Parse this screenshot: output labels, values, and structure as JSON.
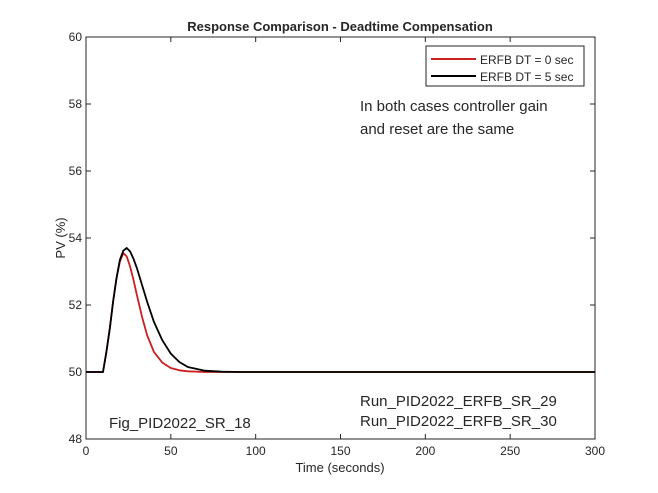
{
  "chart_data": {
    "type": "line",
    "title": "Response Comparison - Deadtime Compensation",
    "xlabel": "Time (seconds)",
    "ylabel": "PV (%)",
    "xlim": [
      0,
      300
    ],
    "ylim": [
      48,
      60
    ],
    "xticks": [
      0,
      50,
      100,
      150,
      200,
      250,
      300
    ],
    "yticks": [
      48,
      50,
      52,
      54,
      56,
      58,
      60
    ],
    "grid": false,
    "legend_position": "upper right",
    "series": [
      {
        "name": "ERFB DT = 0 sec",
        "color": "#cc1f1f",
        "x": [
          0,
          10,
          12,
          14,
          16,
          18,
          20,
          22,
          24,
          26,
          28,
          30,
          33,
          36,
          40,
          45,
          50,
          55,
          60,
          70,
          80,
          90,
          100,
          150,
          200,
          250,
          300
        ],
        "y": [
          50,
          50,
          50.6,
          51.3,
          52.1,
          52.8,
          53.3,
          53.55,
          53.45,
          53.15,
          52.75,
          52.3,
          51.65,
          51.1,
          50.6,
          50.28,
          50.12,
          50.05,
          50.02,
          50.0,
          50.0,
          50.0,
          50.0,
          50.0,
          50.0,
          50.0,
          50.0
        ]
      },
      {
        "name": "ERFB DT = 5 sec",
        "color": "#000000",
        "x": [
          0,
          10,
          12,
          14,
          16,
          18,
          20,
          22,
          24,
          26,
          28,
          30,
          33,
          36,
          40,
          45,
          50,
          55,
          60,
          70,
          80,
          90,
          100,
          150,
          200,
          250,
          300
        ],
        "y": [
          50,
          50,
          50.6,
          51.3,
          52.1,
          52.8,
          53.35,
          53.62,
          53.7,
          53.6,
          53.38,
          53.1,
          52.6,
          52.1,
          51.5,
          50.95,
          50.55,
          50.3,
          50.15,
          50.04,
          50.01,
          50.0,
          50.0,
          50.0,
          50.0,
          50.0,
          50.0
        ]
      }
    ],
    "annotations": [
      {
        "text": "In both cases controller gain",
        "x": 160,
        "y": 58
      },
      {
        "text": "and reset are the same",
        "x": 160,
        "y": 57.3
      },
      {
        "text": "Fig_PID2022_SR_18",
        "x": 13,
        "y": 48.5
      },
      {
        "text": "Run_PID2022_ERFB_SR_29",
        "x": 160,
        "y": 49.15
      },
      {
        "text": "Run_PID2022_ERFB_SR_30",
        "x": 160,
        "y": 48.55
      }
    ]
  }
}
